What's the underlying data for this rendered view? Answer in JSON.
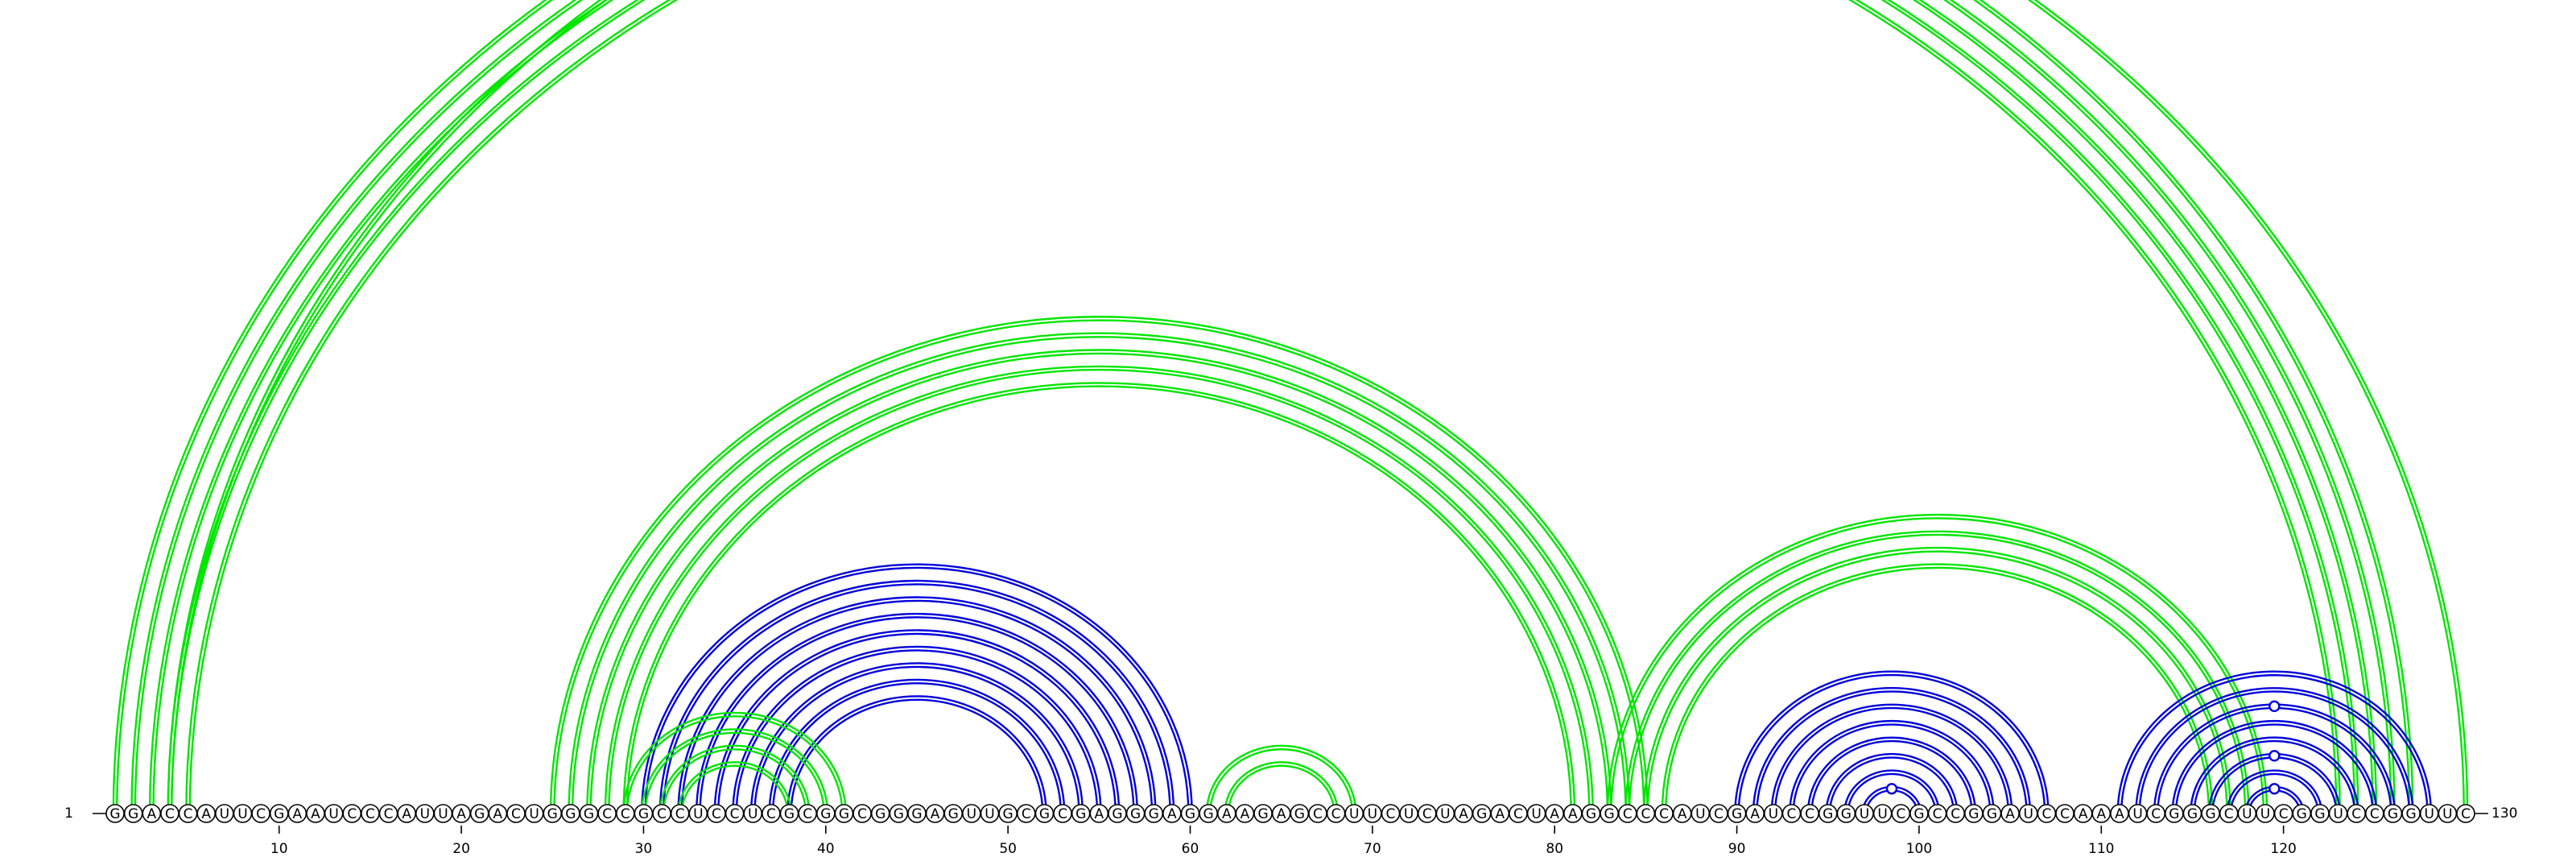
{
  "chart_data": {
    "type": "arc-diagram",
    "sequence": "GGACCAUUCGAAUCCCAUUAGACUGGGCCGCCUCCUCGCGGCGGGAGUUGCGCGAGGGAGGAAGAGCCUUCUCUAGACUAAGGCCCAUCGAUCCGGUUCGCCGGAUCCAAAUCGGGCUUCGGUCCGGUUC",
    "length": 130,
    "start_label": "1",
    "end_label": "130",
    "tick_positions": [
      10,
      20,
      30,
      40,
      50,
      60,
      70,
      80,
      90,
      100,
      110,
      120
    ],
    "colors": {
      "green": "#00e600",
      "blue": "#0000dd"
    },
    "arcs": [
      {
        "i": 1,
        "j": 127,
        "color": "green"
      },
      {
        "i": 2,
        "j": 126,
        "color": "green"
      },
      {
        "i": 3,
        "j": 125,
        "color": "green"
      },
      {
        "i": 4,
        "j": 124,
        "color": "green"
      },
      {
        "i": 5,
        "j": 123,
        "color": "green"
      },
      {
        "i": 4,
        "j": 130,
        "color": "green",
        "marker": true
      },
      {
        "i": 25,
        "j": 85,
        "color": "green"
      },
      {
        "i": 26,
        "j": 84,
        "color": "green"
      },
      {
        "i": 27,
        "j": 83,
        "color": "green"
      },
      {
        "i": 28,
        "j": 82,
        "color": "green"
      },
      {
        "i": 29,
        "j": 81,
        "color": "green"
      },
      {
        "i": 30,
        "j": 60,
        "color": "blue"
      },
      {
        "i": 31,
        "j": 59,
        "color": "blue"
      },
      {
        "i": 32,
        "j": 58,
        "color": "blue"
      },
      {
        "i": 33,
        "j": 57,
        "color": "blue"
      },
      {
        "i": 34,
        "j": 56,
        "color": "blue"
      },
      {
        "i": 35,
        "j": 55,
        "color": "blue"
      },
      {
        "i": 36,
        "j": 54,
        "color": "blue"
      },
      {
        "i": 37,
        "j": 53,
        "color": "blue"
      },
      {
        "i": 38,
        "j": 52,
        "color": "blue"
      },
      {
        "i": 29,
        "j": 41,
        "color": "green"
      },
      {
        "i": 30,
        "j": 40,
        "color": "green"
      },
      {
        "i": 31,
        "j": 39,
        "color": "green"
      },
      {
        "i": 32,
        "j": 38,
        "color": "green"
      },
      {
        "i": 61,
        "j": 69,
        "color": "green"
      },
      {
        "i": 62,
        "j": 68,
        "color": "green"
      },
      {
        "i": 83,
        "j": 119,
        "color": "green"
      },
      {
        "i": 84,
        "j": 118,
        "color": "green"
      },
      {
        "i": 85,
        "j": 117,
        "color": "green"
      },
      {
        "i": 86,
        "j": 116,
        "color": "green"
      },
      {
        "i": 90,
        "j": 107,
        "color": "blue"
      },
      {
        "i": 91,
        "j": 106,
        "color": "blue"
      },
      {
        "i": 92,
        "j": 105,
        "color": "blue"
      },
      {
        "i": 93,
        "j": 104,
        "color": "blue"
      },
      {
        "i": 94,
        "j": 103,
        "color": "blue"
      },
      {
        "i": 95,
        "j": 102,
        "color": "blue"
      },
      {
        "i": 96,
        "j": 101,
        "color": "blue"
      },
      {
        "i": 97,
        "j": 100,
        "color": "blue",
        "marker": true
      },
      {
        "i": 111,
        "j": 128,
        "color": "blue"
      },
      {
        "i": 112,
        "j": 127,
        "color": "blue"
      },
      {
        "i": 113,
        "j": 126,
        "color": "blue",
        "marker": true
      },
      {
        "i": 114,
        "j": 125,
        "color": "blue"
      },
      {
        "i": 115,
        "j": 124,
        "color": "blue"
      },
      {
        "i": 116,
        "j": 123,
        "color": "blue",
        "marker": true
      },
      {
        "i": 117,
        "j": 122,
        "color": "blue"
      },
      {
        "i": 118,
        "j": 121,
        "color": "blue",
        "marker": true
      }
    ]
  }
}
